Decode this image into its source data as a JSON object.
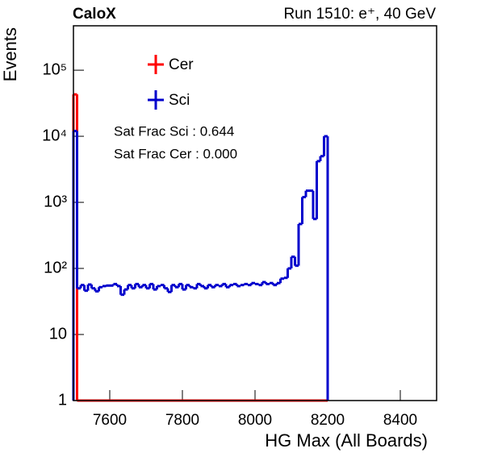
{
  "chart_data": {
    "type": "histogram",
    "title": "CaloX",
    "subtitle": "Run 1510: e⁺, 40 GeV",
    "x_label": "HG Max (All Boards)",
    "y_label": "Events",
    "annotations": [
      "Sat Frac Sci : 0.644",
      "Sat Frac Cer : 0.000"
    ],
    "log_y": true,
    "xlim": [
      7500,
      8500
    ],
    "ylim": [
      1,
      470000
    ],
    "xticks": [
      7600,
      7800,
      8000,
      8200,
      8400
    ],
    "yticks": [
      1,
      10,
      {
        "value": 100,
        "label": "10²"
      },
      {
        "value": 1000,
        "label": "10³"
      },
      {
        "value": 10000,
        "label": "10⁴"
      },
      {
        "value": 100000,
        "label": "10⁵"
      }
    ],
    "bins": [
      7500,
      7510,
      7520,
      7530,
      7540,
      7550,
      7560,
      7570,
      7580,
      7590,
      7600,
      7610,
      7620,
      7630,
      7640,
      7650,
      7660,
      7670,
      7680,
      7690,
      7700,
      7710,
      7720,
      7730,
      7740,
      7750,
      7760,
      7770,
      7780,
      7790,
      7800,
      7810,
      7820,
      7830,
      7840,
      7850,
      7860,
      7870,
      7880,
      7890,
      7900,
      7910,
      7920,
      7930,
      7940,
      7950,
      7960,
      7970,
      7980,
      7990,
      8000,
      8010,
      8020,
      8030,
      8040,
      8050,
      8060,
      8070,
      8080,
      8090,
      8100,
      8110,
      8120,
      8130,
      8140,
      8150,
      8160,
      8170,
      8180,
      8190,
      8200
    ],
    "series": [
      {
        "name": "Cer",
        "color": "#ff0000",
        "values": [
          43000,
          0,
          0,
          0,
          0,
          0,
          0,
          0,
          0,
          0,
          0,
          0,
          0,
          0,
          0,
          0,
          0,
          0,
          0,
          0,
          0,
          0,
          0,
          0,
          0,
          0,
          0,
          0,
          0,
          0,
          0,
          0,
          0,
          0,
          0,
          0,
          0,
          0,
          0,
          0,
          0,
          0,
          0,
          0,
          0,
          0,
          0,
          0,
          0,
          0,
          0,
          0,
          0,
          0,
          0,
          0,
          0,
          0,
          0,
          0,
          0,
          0,
          0,
          0,
          0,
          0,
          0,
          0,
          0,
          0
        ]
      },
      {
        "name": "Sci",
        "color": "#0000cc",
        "values": [
          12000,
          50,
          56,
          46,
          57,
          50,
          45,
          52,
          54,
          55,
          55,
          58,
          54,
          40,
          48,
          56,
          50,
          58,
          52,
          56,
          50,
          58,
          48,
          54,
          56,
          50,
          44,
          56,
          52,
          58,
          48,
          56,
          52,
          50,
          58,
          54,
          50,
          56,
          52,
          56,
          54,
          58,
          52,
          56,
          58,
          54,
          56,
          58,
          56,
          60,
          58,
          56,
          62,
          58,
          60,
          56,
          60,
          70,
          72,
          100,
          150,
          110,
          470,
          1200,
          1500,
          1500,
          560,
          4200,
          5000,
          10000
        ]
      }
    ],
    "legend": "upper-left"
  }
}
